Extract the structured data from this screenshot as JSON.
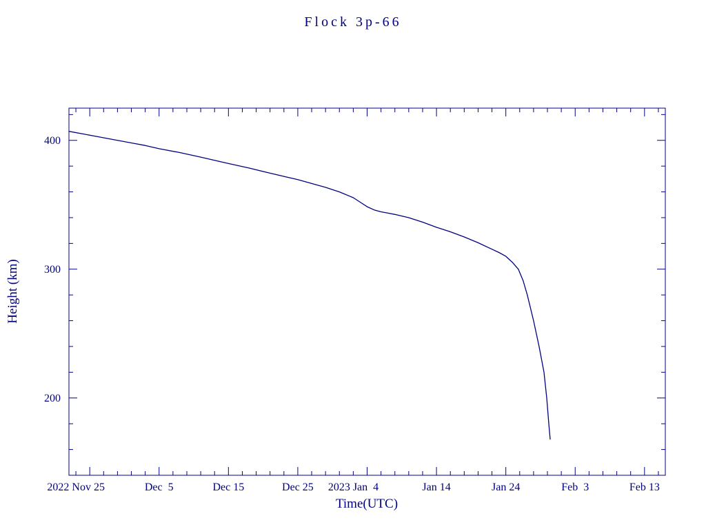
{
  "title": "Flock 3p-66",
  "colors": {
    "accent": "#000080",
    "background": "#ffffff"
  },
  "chart_data": {
    "type": "line",
    "title": "Flock 3p-66",
    "xlabel": "Time(UTC)",
    "ylabel": "Height (km)",
    "x_units": "days",
    "x_axis_epoch": "2022 Nov 22",
    "xlim": [
      0,
      86
    ],
    "ylim": [
      140,
      425
    ],
    "grid": false,
    "legend": "none",
    "x_ticks": [
      {
        "day": 3,
        "label": "2022 Nov 25"
      },
      {
        "day": 13,
        "label": "Dec  5"
      },
      {
        "day": 23,
        "label": "Dec 15"
      },
      {
        "day": 33,
        "label": "Dec 25"
      },
      {
        "day": 43,
        "label": "2023 Jan  4"
      },
      {
        "day": 53,
        "label": "Jan 14"
      },
      {
        "day": 63,
        "label": "Jan 24"
      },
      {
        "day": 73,
        "label": "Feb  3"
      },
      {
        "day": 83,
        "label": "Feb 13"
      }
    ],
    "y_ticks": [
      200,
      300,
      400
    ],
    "minor_x_step_days": 2,
    "minor_y_step_km": 20,
    "series": [
      {
        "name": "height",
        "x": [
          0,
          2,
          4,
          6,
          9,
          11,
          13,
          16,
          19,
          21,
          23,
          26,
          29,
          31,
          33,
          35,
          37,
          39,
          41,
          42,
          43,
          44,
          45,
          46,
          47,
          49,
          51,
          53,
          55,
          57,
          59,
          61,
          62,
          63,
          64,
          64.8,
          65.5,
          66.1,
          67,
          67.8,
          68.5,
          68.9,
          69.2,
          69.4
        ],
        "y": [
          407,
          405,
          403,
          401,
          398,
          396,
          393.5,
          390.5,
          387,
          384.5,
          382,
          378.5,
          374.5,
          372,
          369.5,
          366.5,
          363.5,
          360,
          355.5,
          352,
          348.5,
          346,
          344.5,
          343.5,
          342.5,
          340,
          336.5,
          332.5,
          329,
          325,
          320.5,
          315.5,
          313,
          310,
          305,
          300,
          291,
          280,
          260,
          240,
          220,
          200,
          180,
          168
        ]
      }
    ]
  }
}
